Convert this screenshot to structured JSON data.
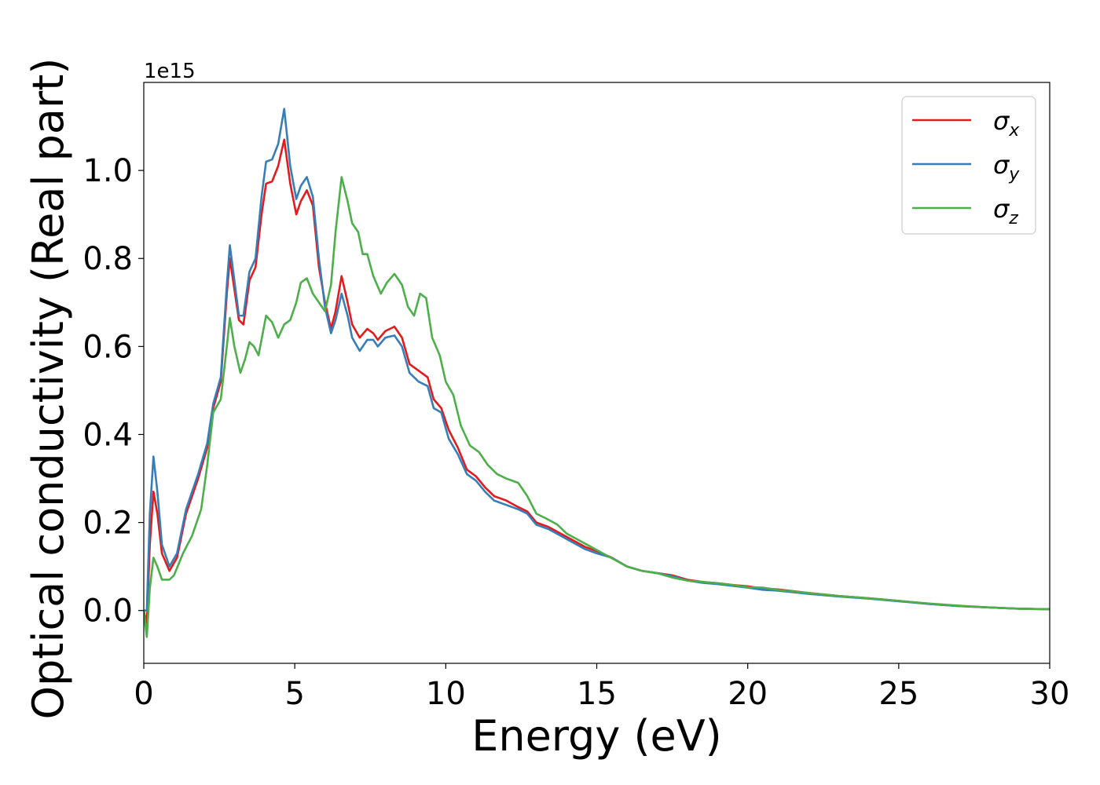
{
  "chart_data": {
    "type": "line",
    "title": "",
    "xlabel": "Energy (eV)",
    "ylabel": "Optical conductivity (Real part)",
    "y_offset_label": "1e15",
    "xlim": [
      0,
      30
    ],
    "ylim": [
      -0.12,
      1.2
    ],
    "grid": false,
    "legend_position": "top-right",
    "x_ticks": [
      0,
      5,
      10,
      15,
      20,
      25,
      30
    ],
    "x_tick_labels": [
      "0",
      "5",
      "10",
      "15",
      "20",
      "25",
      "30"
    ],
    "y_ticks": [
      0.0,
      0.2,
      0.4,
      0.6,
      0.8,
      1.0
    ],
    "y_tick_labels": [
      "0.0",
      "0.2",
      "0.4",
      "0.6",
      "0.8",
      "1.0"
    ],
    "series": [
      {
        "name": "σx",
        "symbol": "σ",
        "subscript": "x",
        "color": "#e41a1c",
        "points": [
          [
            0,
            0.0
          ],
          [
            0.1,
            -0.03
          ],
          [
            0.2,
            0.15
          ],
          [
            0.32,
            0.27
          ],
          [
            0.45,
            0.22
          ],
          [
            0.6,
            0.13
          ],
          [
            0.85,
            0.09
          ],
          [
            1.1,
            0.12
          ],
          [
            1.4,
            0.22
          ],
          [
            1.8,
            0.3
          ],
          [
            2.1,
            0.37
          ],
          [
            2.3,
            0.46
          ],
          [
            2.55,
            0.52
          ],
          [
            2.75,
            0.72
          ],
          [
            2.85,
            0.8
          ],
          [
            3.0,
            0.73
          ],
          [
            3.15,
            0.66
          ],
          [
            3.3,
            0.65
          ],
          [
            3.5,
            0.75
          ],
          [
            3.7,
            0.78
          ],
          [
            3.9,
            0.9
          ],
          [
            4.05,
            0.97
          ],
          [
            4.25,
            0.975
          ],
          [
            4.45,
            1.01
          ],
          [
            4.65,
            1.07
          ],
          [
            4.85,
            0.97
          ],
          [
            5.05,
            0.9
          ],
          [
            5.2,
            0.93
          ],
          [
            5.4,
            0.955
          ],
          [
            5.6,
            0.92
          ],
          [
            5.8,
            0.78
          ],
          [
            6.0,
            0.7
          ],
          [
            6.2,
            0.64
          ],
          [
            6.35,
            0.68
          ],
          [
            6.55,
            0.76
          ],
          [
            6.75,
            0.7
          ],
          [
            6.9,
            0.65
          ],
          [
            7.15,
            0.62
          ],
          [
            7.4,
            0.64
          ],
          [
            7.6,
            0.63
          ],
          [
            7.75,
            0.615
          ],
          [
            8.0,
            0.635
          ],
          [
            8.3,
            0.645
          ],
          [
            8.55,
            0.62
          ],
          [
            8.8,
            0.56
          ],
          [
            9.1,
            0.545
          ],
          [
            9.4,
            0.53
          ],
          [
            9.6,
            0.48
          ],
          [
            9.85,
            0.46
          ],
          [
            10.1,
            0.41
          ],
          [
            10.4,
            0.37
          ],
          [
            10.7,
            0.32
          ],
          [
            11.0,
            0.305
          ],
          [
            11.3,
            0.28
          ],
          [
            11.6,
            0.26
          ],
          [
            12.0,
            0.25
          ],
          [
            12.4,
            0.235
          ],
          [
            12.7,
            0.225
          ],
          [
            13.0,
            0.2
          ],
          [
            13.4,
            0.19
          ],
          [
            13.8,
            0.175
          ],
          [
            14.2,
            0.16
          ],
          [
            14.6,
            0.145
          ],
          [
            15.0,
            0.135
          ],
          [
            15.5,
            0.12
          ],
          [
            16.0,
            0.1
          ],
          [
            16.5,
            0.09
          ],
          [
            17.0,
            0.085
          ],
          [
            17.5,
            0.08
          ],
          [
            18.0,
            0.07
          ],
          [
            18.5,
            0.065
          ],
          [
            19.0,
            0.062
          ],
          [
            19.5,
            0.058
          ],
          [
            20.0,
            0.055
          ],
          [
            20.5,
            0.05
          ],
          [
            21.0,
            0.048
          ],
          [
            22.0,
            0.04
          ],
          [
            23.0,
            0.033
          ],
          [
            24.0,
            0.028
          ],
          [
            25.0,
            0.022
          ],
          [
            26.0,
            0.015
          ],
          [
            27.0,
            0.01
          ],
          [
            28.0,
            0.007
          ],
          [
            29.0,
            0.004
          ],
          [
            30.0,
            0.003
          ]
        ]
      },
      {
        "name": "σy",
        "symbol": "σ",
        "subscript": "y",
        "color": "#377eb8",
        "points": [
          [
            0,
            0.0
          ],
          [
            0.1,
            0.0
          ],
          [
            0.2,
            0.22
          ],
          [
            0.32,
            0.35
          ],
          [
            0.45,
            0.27
          ],
          [
            0.6,
            0.15
          ],
          [
            0.85,
            0.1
          ],
          [
            1.1,
            0.13
          ],
          [
            1.4,
            0.23
          ],
          [
            1.8,
            0.31
          ],
          [
            2.1,
            0.38
          ],
          [
            2.3,
            0.47
          ],
          [
            2.55,
            0.53
          ],
          [
            2.75,
            0.74
          ],
          [
            2.85,
            0.83
          ],
          [
            3.0,
            0.75
          ],
          [
            3.15,
            0.67
          ],
          [
            3.3,
            0.67
          ],
          [
            3.5,
            0.77
          ],
          [
            3.7,
            0.8
          ],
          [
            3.9,
            0.94
          ],
          [
            4.05,
            1.02
          ],
          [
            4.25,
            1.025
          ],
          [
            4.45,
            1.06
          ],
          [
            4.65,
            1.14
          ],
          [
            4.85,
            1.01
          ],
          [
            5.05,
            0.935
          ],
          [
            5.2,
            0.965
          ],
          [
            5.4,
            0.985
          ],
          [
            5.6,
            0.94
          ],
          [
            5.8,
            0.8
          ],
          [
            6.0,
            0.69
          ],
          [
            6.2,
            0.63
          ],
          [
            6.35,
            0.66
          ],
          [
            6.55,
            0.72
          ],
          [
            6.75,
            0.67
          ],
          [
            6.9,
            0.62
          ],
          [
            7.15,
            0.59
          ],
          [
            7.4,
            0.615
          ],
          [
            7.6,
            0.615
          ],
          [
            7.75,
            0.6
          ],
          [
            8.0,
            0.62
          ],
          [
            8.3,
            0.625
          ],
          [
            8.55,
            0.6
          ],
          [
            8.8,
            0.54
          ],
          [
            9.1,
            0.52
          ],
          [
            9.4,
            0.51
          ],
          [
            9.6,
            0.46
          ],
          [
            9.85,
            0.45
          ],
          [
            10.1,
            0.39
          ],
          [
            10.4,
            0.355
          ],
          [
            10.7,
            0.31
          ],
          [
            11.0,
            0.295
          ],
          [
            11.3,
            0.27
          ],
          [
            11.6,
            0.25
          ],
          [
            12.0,
            0.24
          ],
          [
            12.4,
            0.23
          ],
          [
            12.7,
            0.22
          ],
          [
            13.0,
            0.195
          ],
          [
            13.4,
            0.185
          ],
          [
            13.8,
            0.17
          ],
          [
            14.2,
            0.155
          ],
          [
            14.6,
            0.14
          ],
          [
            15.0,
            0.13
          ],
          [
            15.5,
            0.12
          ],
          [
            16.0,
            0.1
          ],
          [
            16.5,
            0.09
          ],
          [
            17.0,
            0.085
          ],
          [
            17.5,
            0.078
          ],
          [
            18.0,
            0.068
          ],
          [
            18.5,
            0.063
          ],
          [
            19.0,
            0.06
          ],
          [
            19.5,
            0.056
          ],
          [
            20.0,
            0.052
          ],
          [
            20.5,
            0.047
          ],
          [
            21.0,
            0.045
          ],
          [
            22.0,
            0.038
          ],
          [
            23.0,
            0.032
          ],
          [
            24.0,
            0.027
          ],
          [
            25.0,
            0.021
          ],
          [
            26.0,
            0.015
          ],
          [
            27.0,
            0.01
          ],
          [
            28.0,
            0.007
          ],
          [
            29.0,
            0.004
          ],
          [
            30.0,
            0.003
          ]
        ]
      },
      {
        "name": "σz",
        "symbol": "σ",
        "subscript": "z",
        "color": "#4daf4a",
        "points": [
          [
            0,
            0.0
          ],
          [
            0.1,
            -0.06
          ],
          [
            0.2,
            0.05
          ],
          [
            0.32,
            0.12
          ],
          [
            0.45,
            0.1
          ],
          [
            0.6,
            0.07
          ],
          [
            0.85,
            0.07
          ],
          [
            1.0,
            0.08
          ],
          [
            1.3,
            0.13
          ],
          [
            1.6,
            0.17
          ],
          [
            1.9,
            0.23
          ],
          [
            2.1,
            0.33
          ],
          [
            2.3,
            0.45
          ],
          [
            2.55,
            0.48
          ],
          [
            2.75,
            0.6
          ],
          [
            2.85,
            0.665
          ],
          [
            3.0,
            0.6
          ],
          [
            3.2,
            0.54
          ],
          [
            3.35,
            0.57
          ],
          [
            3.5,
            0.61
          ],
          [
            3.65,
            0.6
          ],
          [
            3.8,
            0.58
          ],
          [
            4.05,
            0.67
          ],
          [
            4.25,
            0.655
          ],
          [
            4.45,
            0.62
          ],
          [
            4.65,
            0.65
          ],
          [
            4.85,
            0.66
          ],
          [
            5.05,
            0.7
          ],
          [
            5.2,
            0.745
          ],
          [
            5.4,
            0.755
          ],
          [
            5.6,
            0.72
          ],
          [
            5.8,
            0.7
          ],
          [
            6.0,
            0.68
          ],
          [
            6.2,
            0.74
          ],
          [
            6.35,
            0.86
          ],
          [
            6.55,
            0.985
          ],
          [
            6.75,
            0.93
          ],
          [
            6.9,
            0.88
          ],
          [
            7.1,
            0.86
          ],
          [
            7.25,
            0.81
          ],
          [
            7.4,
            0.81
          ],
          [
            7.6,
            0.76
          ],
          [
            7.85,
            0.72
          ],
          [
            8.05,
            0.745
          ],
          [
            8.3,
            0.765
          ],
          [
            8.55,
            0.74
          ],
          [
            8.75,
            0.69
          ],
          [
            8.95,
            0.67
          ],
          [
            9.15,
            0.72
          ],
          [
            9.35,
            0.71
          ],
          [
            9.55,
            0.62
          ],
          [
            9.8,
            0.58
          ],
          [
            10.0,
            0.52
          ],
          [
            10.25,
            0.49
          ],
          [
            10.5,
            0.42
          ],
          [
            10.8,
            0.375
          ],
          [
            11.1,
            0.36
          ],
          [
            11.4,
            0.33
          ],
          [
            11.7,
            0.31
          ],
          [
            12.0,
            0.3
          ],
          [
            12.4,
            0.29
          ],
          [
            12.7,
            0.26
          ],
          [
            13.0,
            0.22
          ],
          [
            13.3,
            0.21
          ],
          [
            13.7,
            0.195
          ],
          [
            14.0,
            0.175
          ],
          [
            14.4,
            0.16
          ],
          [
            14.8,
            0.145
          ],
          [
            15.2,
            0.13
          ],
          [
            15.6,
            0.115
          ],
          [
            16.0,
            0.1
          ],
          [
            16.5,
            0.09
          ],
          [
            17.0,
            0.085
          ],
          [
            17.5,
            0.075
          ],
          [
            18.0,
            0.068
          ],
          [
            18.5,
            0.065
          ],
          [
            19.0,
            0.062
          ],
          [
            19.5,
            0.058
          ],
          [
            20.0,
            0.053
          ],
          [
            20.5,
            0.052
          ],
          [
            21.0,
            0.047
          ],
          [
            22.0,
            0.04
          ],
          [
            23.0,
            0.033
          ],
          [
            24.0,
            0.028
          ],
          [
            25.0,
            0.022
          ],
          [
            26.0,
            0.016
          ],
          [
            27.0,
            0.011
          ],
          [
            28.0,
            0.007
          ],
          [
            29.0,
            0.004
          ],
          [
            30.0,
            0.003
          ]
        ]
      }
    ]
  }
}
